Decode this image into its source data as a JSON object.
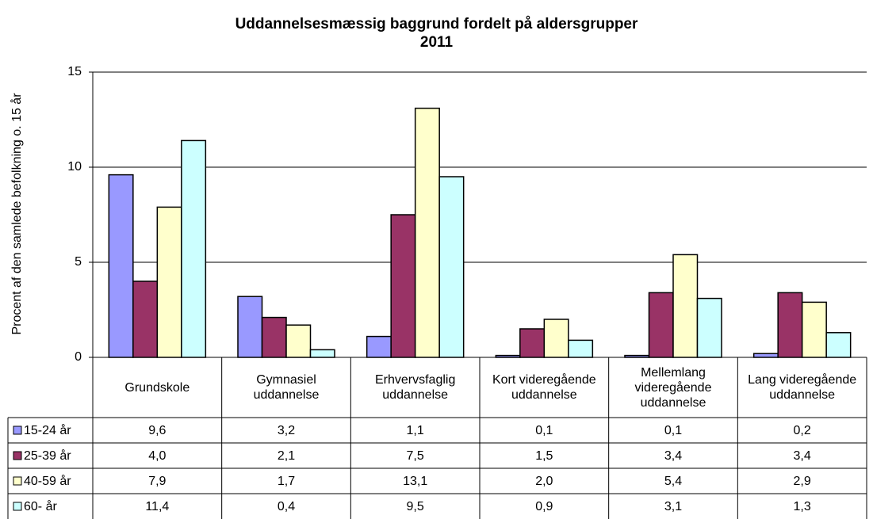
{
  "chart_data": {
    "type": "bar",
    "title": "Uddannelsesmæssig baggrund fordelt på aldersgrupper",
    "subtitle": "2011",
    "y_label": "Procent af den samlede befolkning o. 15 år",
    "categories": [
      "Grundskole",
      "Gymnasiel uddannelse",
      "Erhvervsfaglig uddannelse",
      "Kort videregående uddannelse",
      "Mellemlang videregående uddannelse",
      "Lang videregående uddannelse"
    ],
    "series": [
      {
        "name": "15-24 år",
        "color": "#9999ff",
        "values": [
          9.6,
          3.2,
          1.1,
          0.1,
          0.1,
          0.2
        ],
        "value_labels": [
          "9,6",
          "3,2",
          "1,1",
          "0,1",
          "0,1",
          "0,2"
        ]
      },
      {
        "name": "25-39 år",
        "color": "#993366",
        "values": [
          4.0,
          2.1,
          7.5,
          1.5,
          3.4,
          3.4
        ],
        "value_labels": [
          "4,0",
          "2,1",
          "7,5",
          "1,5",
          "3,4",
          "3,4"
        ]
      },
      {
        "name": "40-59 år",
        "color": "#ffffcc",
        "values": [
          7.9,
          1.7,
          13.1,
          2.0,
          5.4,
          2.9
        ],
        "value_labels": [
          "7,9",
          "1,7",
          "13,1",
          "2,0",
          "5,4",
          "2,9"
        ]
      },
      {
        "name": "60- år",
        "color": "#ccffff",
        "values": [
          11.4,
          0.4,
          9.5,
          0.9,
          3.1,
          1.3
        ],
        "value_labels": [
          "11,4",
          "0,4",
          "9,5",
          "0,9",
          "3,1",
          "1,3"
        ]
      }
    ],
    "ylim": [
      0,
      15
    ],
    "yticks": [
      0,
      5,
      10,
      15
    ],
    "grid": true
  }
}
